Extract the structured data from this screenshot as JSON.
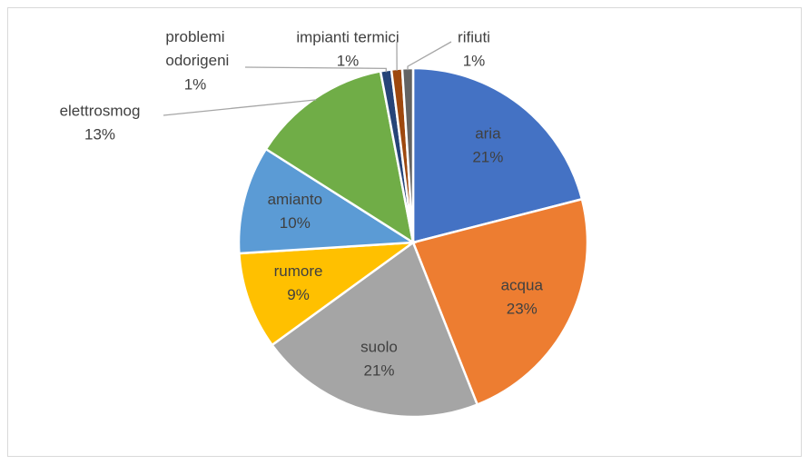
{
  "chart_data": {
    "type": "pie",
    "categories": [
      "aria",
      "acqua",
      "suolo",
      "rumore",
      "amianto",
      "elettrosmog",
      "problemi odorigeni",
      "impianti termici",
      "rifiuti"
    ],
    "values": [
      21,
      23,
      21,
      9,
      10,
      13,
      1,
      1,
      1
    ],
    "value_labels": [
      "21%",
      "23%",
      "21%",
      "9%",
      "10%",
      "13%",
      "1%",
      "1%",
      "1%"
    ],
    "colors": [
      "#4472c4",
      "#ed7d31",
      "#a5a5a5",
      "#ffc000",
      "#5b9bd5",
      "#70ad47",
      "#264478",
      "#9e480e",
      "#636363"
    ]
  }
}
